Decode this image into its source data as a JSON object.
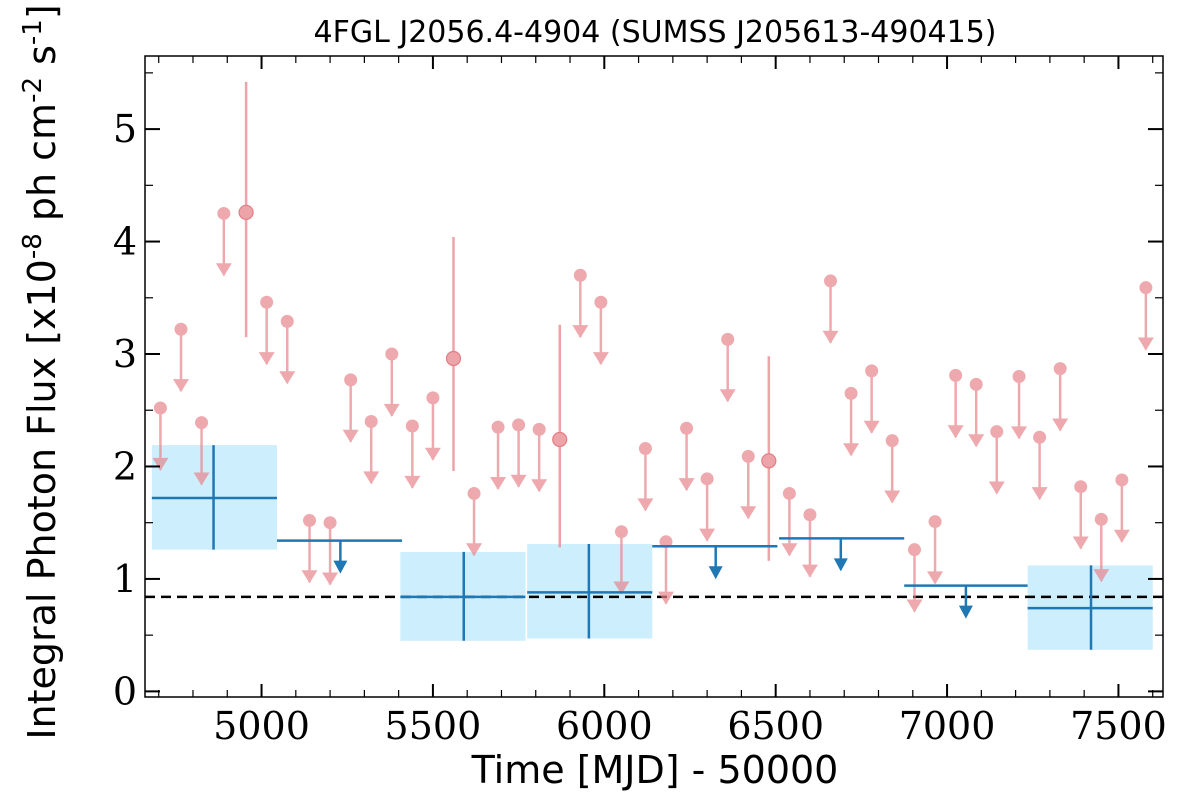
{
  "chart_data": {
    "type": "scatter",
    "title": "4FGL J2056.4-4904 (SUMSS J205613-490415)",
    "xlabel": "Time [MJD] - 50000",
    "ylabel": "Integral Photon Flux [x10^-8 ph cm^-2 s^-1]",
    "xlim": [
      4660,
      7630
    ],
    "ylim": [
      -0.05,
      5.65
    ],
    "xticks": [
      5000,
      5500,
      6000,
      6500,
      7000,
      7500
    ],
    "xtick_labels": [
      "5000",
      "5500",
      "6000",
      "6500",
      "7000",
      "7500"
    ],
    "yticks": [
      0,
      1,
      2,
      3,
      4,
      5
    ],
    "ytick_labels": [
      "0",
      "1",
      "2",
      "3",
      "4",
      "5"
    ],
    "grid": false,
    "legend": "none",
    "colors": {
      "fine_bins": "#e8868c",
      "coarse_bins": "#1f77b4",
      "coarse_band": "#cdeefc",
      "mean_line": "#000000"
    },
    "mean_flux": 0.84,
    "fine_upper_limits": [
      {
        "x": 4705,
        "y": 2.52
      },
      {
        "x": 4765,
        "y": 3.22
      },
      {
        "x": 4825,
        "y": 2.39
      },
      {
        "x": 4890,
        "y": 4.25
      },
      {
        "x": 5015,
        "y": 3.46
      },
      {
        "x": 5075,
        "y": 3.29
      },
      {
        "x": 5140,
        "y": 1.52
      },
      {
        "x": 5200,
        "y": 1.5
      },
      {
        "x": 5260,
        "y": 2.77
      },
      {
        "x": 5320,
        "y": 2.4
      },
      {
        "x": 5380,
        "y": 3.0
      },
      {
        "x": 5440,
        "y": 2.36
      },
      {
        "x": 5500,
        "y": 2.61
      },
      {
        "x": 5620,
        "y": 1.76
      },
      {
        "x": 5690,
        "y": 2.35
      },
      {
        "x": 5750,
        "y": 2.37
      },
      {
        "x": 5810,
        "y": 2.33
      },
      {
        "x": 5930,
        "y": 3.7
      },
      {
        "x": 5990,
        "y": 3.46
      },
      {
        "x": 6050,
        "y": 1.42
      },
      {
        "x": 6120,
        "y": 2.16
      },
      {
        "x": 6180,
        "y": 1.33
      },
      {
        "x": 6240,
        "y": 2.34
      },
      {
        "x": 6300,
        "y": 1.89
      },
      {
        "x": 6360,
        "y": 3.13
      },
      {
        "x": 6420,
        "y": 2.09
      },
      {
        "x": 6540,
        "y": 1.76
      },
      {
        "x": 6600,
        "y": 1.57
      },
      {
        "x": 6660,
        "y": 3.65
      },
      {
        "x": 6720,
        "y": 2.65
      },
      {
        "x": 6780,
        "y": 2.85
      },
      {
        "x": 6840,
        "y": 2.23
      },
      {
        "x": 6905,
        "y": 1.26
      },
      {
        "x": 6965,
        "y": 1.51
      },
      {
        "x": 7025,
        "y": 2.81
      },
      {
        "x": 7085,
        "y": 2.73
      },
      {
        "x": 7145,
        "y": 2.31
      },
      {
        "x": 7210,
        "y": 2.8
      },
      {
        "x": 7270,
        "y": 2.26
      },
      {
        "x": 7330,
        "y": 2.87
      },
      {
        "x": 7390,
        "y": 1.82
      },
      {
        "x": 7450,
        "y": 1.53
      },
      {
        "x": 7510,
        "y": 1.88
      },
      {
        "x": 7580,
        "y": 3.59
      }
    ],
    "fine_detections": [
      {
        "x": 4955,
        "y": 4.26,
        "ylo": 3.15,
        "yhi": 5.42
      },
      {
        "x": 5560,
        "y": 2.96,
        "ylo": 1.96,
        "yhi": 4.04
      },
      {
        "x": 5870,
        "y": 2.24,
        "ylo": 1.28,
        "yhi": 3.26
      },
      {
        "x": 6480,
        "y": 2.05,
        "ylo": 1.16,
        "yhi": 2.98
      }
    ],
    "coarse_detections": [
      {
        "x": 4860,
        "xlo": 4680,
        "xhi": 5045,
        "y": 1.72,
        "ylo": 1.26,
        "yhi": 2.19
      },
      {
        "x": 5590,
        "xlo": 5405,
        "xhi": 5770,
        "y": 0.84,
        "ylo": 0.45,
        "yhi": 1.24
      },
      {
        "x": 5955,
        "xlo": 5775,
        "xhi": 6140,
        "y": 0.88,
        "ylo": 0.47,
        "yhi": 1.31
      },
      {
        "x": 7420,
        "xlo": 7235,
        "xhi": 7600,
        "y": 0.74,
        "ylo": 0.37,
        "yhi": 1.12
      }
    ],
    "coarse_upper_limits": [
      {
        "x": 5230,
        "xlo": 5045,
        "xhi": 5410,
        "y": 1.34
      },
      {
        "x": 6325,
        "xlo": 6140,
        "xhi": 6505,
        "y": 1.29
      },
      {
        "x": 6690,
        "xlo": 6510,
        "xhi": 6875,
        "y": 1.36
      },
      {
        "x": 7055,
        "xlo": 6875,
        "xhi": 7235,
        "y": 0.94
      }
    ]
  }
}
